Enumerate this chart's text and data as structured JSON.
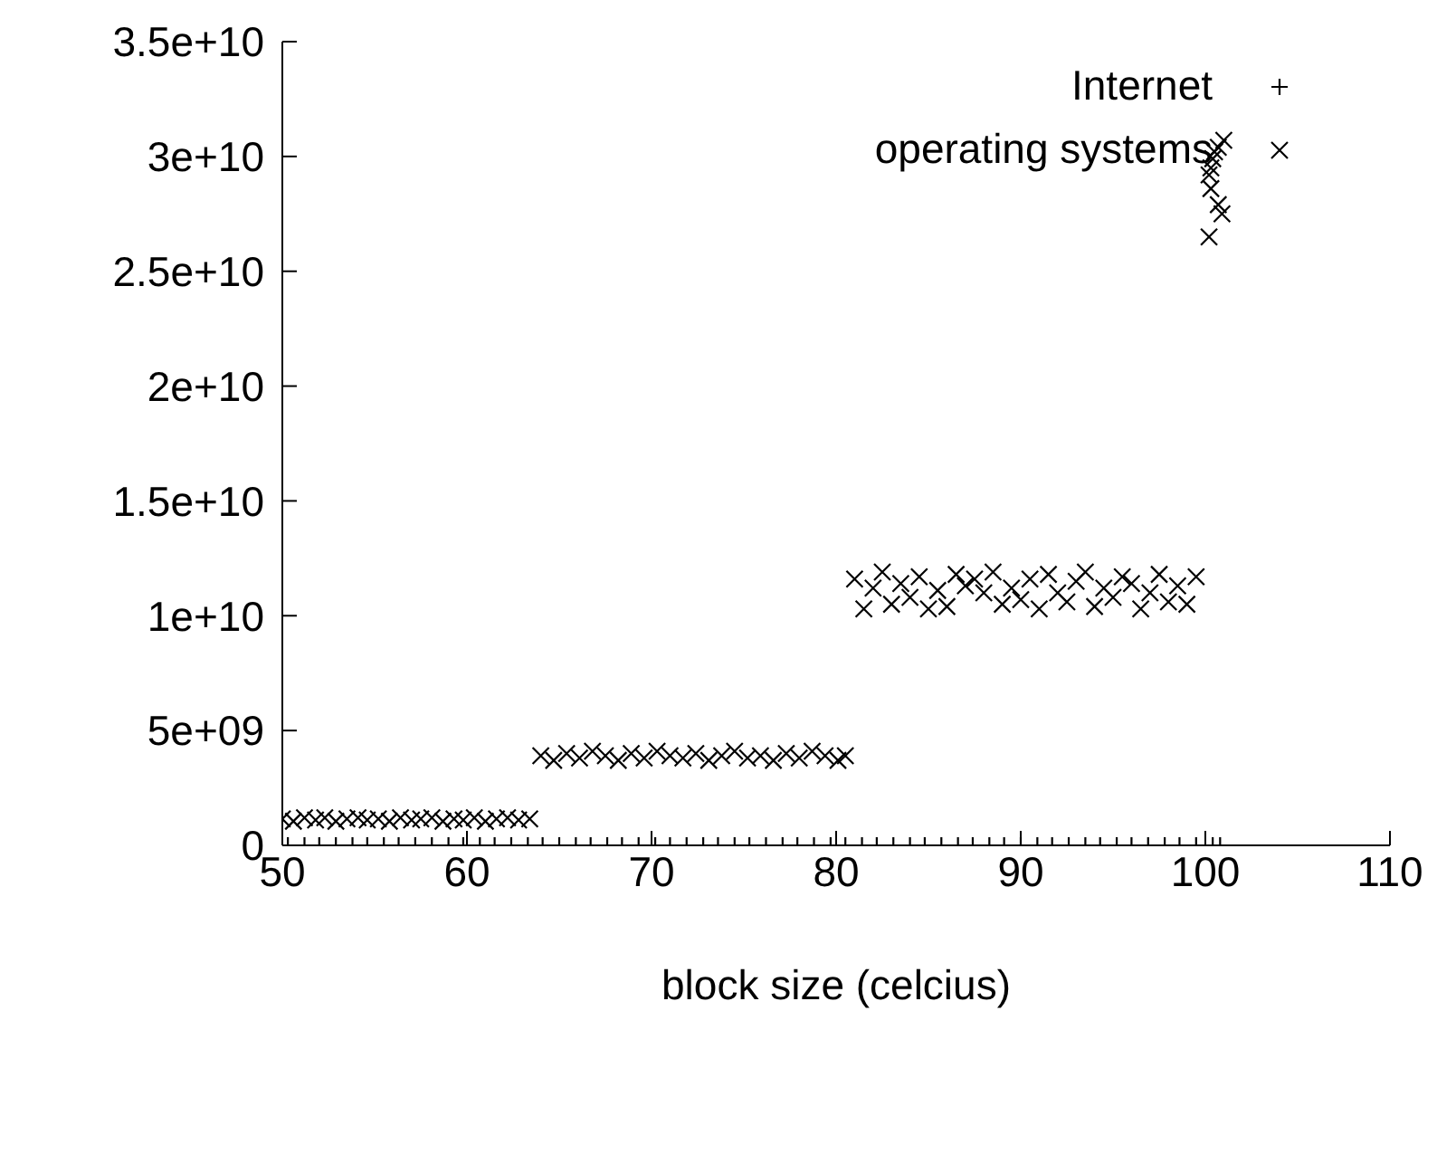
{
  "chart_data": {
    "type": "scatter",
    "xlabel": "block size (celcius)",
    "xlim": [
      50,
      110
    ],
    "xticks": [
      50,
      60,
      70,
      80,
      90,
      100,
      110
    ],
    "ylim": [
      0,
      35000000000
    ],
    "yticks": [
      0,
      {
        "value": 5000000000,
        "label": "5e+09"
      },
      {
        "value": 10000000000,
        "label": "1e+10"
      },
      {
        "value": 15000000000,
        "label": "1.5e+10"
      },
      {
        "value": 20000000000,
        "label": "2e+10"
      },
      {
        "value": 25000000000,
        "label": "2.5e+10"
      },
      {
        "value": 30000000000,
        "label": "3e+10"
      },
      {
        "value": 35000000000,
        "label": "3.5e+10"
      }
    ],
    "grid": false,
    "legend": "top right",
    "series": [
      {
        "name": "Internet",
        "color": "#000000",
        "marker": "plus",
        "x": [
          50.3,
          51.2,
          52.0,
          52.9,
          53.8,
          54.6,
          55.5,
          56.3,
          57.2,
          58.1,
          59.0,
          59.8,
          60.7,
          61.5,
          62.4,
          63.3,
          64.1,
          65.0,
          65.9,
          66.7,
          67.6,
          68.4,
          69.3,
          70.2,
          71.0,
          71.9,
          72.8,
          73.6,
          74.5,
          75.3,
          76.2,
          77.1,
          77.9,
          78.8,
          79.7,
          80.5,
          81.4,
          82.2,
          83.1,
          84.0,
          84.8,
          85.7,
          86.6,
          87.4,
          88.3,
          89.1,
          90.0,
          90.9,
          91.7,
          92.6,
          93.5,
          94.3,
          95.2,
          96.0,
          96.9,
          97.8,
          98.6,
          99.5,
          100.4,
          100.8
        ],
        "values": [
          0,
          0,
          0,
          0,
          0,
          0,
          0,
          0,
          0,
          0,
          0,
          0,
          0,
          0,
          0,
          0,
          0,
          0,
          0,
          0,
          0,
          0,
          0,
          0,
          0,
          0,
          0,
          0,
          0,
          0,
          0,
          0,
          0,
          0,
          0,
          0,
          0,
          0,
          0,
          0,
          0,
          0,
          0,
          0,
          0,
          0,
          0,
          0,
          0,
          0,
          0,
          0,
          0,
          0,
          0,
          0,
          0,
          0,
          0,
          0
        ]
      },
      {
        "name": "operating systems",
        "color": "#000000",
        "marker": "cross",
        "x": [
          50.0,
          50.6,
          51.2,
          51.8,
          52.3,
          52.9,
          53.5,
          54.1,
          54.6,
          55.2,
          55.8,
          56.4,
          57.0,
          57.5,
          58.1,
          58.7,
          59.3,
          59.8,
          60.4,
          61.0,
          61.6,
          62.2,
          62.8,
          63.4,
          64.0,
          64.7,
          65.4,
          66.1,
          66.8,
          67.5,
          68.2,
          68.9,
          69.6,
          70.3,
          71.0,
          71.7,
          72.4,
          73.1,
          73.8,
          74.5,
          75.2,
          75.9,
          76.6,
          77.3,
          78.0,
          78.7,
          79.4,
          80.1,
          80.5,
          81.0,
          81.5,
          82.0,
          82.5,
          83.0,
          83.5,
          84.0,
          84.5,
          85.0,
          85.5,
          86.0,
          86.5,
          87.0,
          87.5,
          88.0,
          88.5,
          89.0,
          89.5,
          90.0,
          90.5,
          91.0,
          91.5,
          92.0,
          92.5,
          93.0,
          93.5,
          94.0,
          94.5,
          95.0,
          95.5,
          96.0,
          96.5,
          97.0,
          97.5,
          98.0,
          98.5,
          99.0,
          99.5,
          101.0,
          100.7,
          100.5,
          100.4,
          100.3,
          100.2,
          100.3,
          100.7,
          100.9,
          100.2
        ],
        "values": [
          1150000000,
          1050000000,
          1200000000,
          1100000000,
          1200000000,
          1050000000,
          1150000000,
          1200000000,
          1100000000,
          1150000000,
          1050000000,
          1200000000,
          1100000000,
          1150000000,
          1200000000,
          1050000000,
          1150000000,
          1100000000,
          1200000000,
          1050000000,
          1150000000,
          1200000000,
          1100000000,
          1150000000,
          3900000000,
          3700000000,
          4000000000,
          3800000000,
          4100000000,
          3900000000,
          3700000000,
          4000000000,
          3800000000,
          4100000000,
          3900000000,
          3800000000,
          4000000000,
          3700000000,
          3900000000,
          4100000000,
          3800000000,
          3900000000,
          3700000000,
          4000000000,
          3800000000,
          4100000000,
          3900000000,
          3700000000,
          3900000000,
          11600000000,
          10300000000,
          11200000000,
          11900000000,
          10500000000,
          11400000000,
          10800000000,
          11700000000,
          10300000000,
          11100000000,
          10400000000,
          11800000000,
          11300000000,
          11600000000,
          11000000000,
          11900000000,
          10500000000,
          11200000000,
          10700000000,
          11600000000,
          10300000000,
          11800000000,
          11000000000,
          10600000000,
          11500000000,
          11900000000,
          10400000000,
          11200000000,
          10800000000,
          11700000000,
          11400000000,
          10300000000,
          11000000000,
          11800000000,
          10600000000,
          11300000000,
          10500000000,
          11700000000,
          30700000000,
          30400000000,
          30200000000,
          29900000000,
          29500000000,
          29200000000,
          28600000000,
          27900000000,
          27500000000,
          26500000000
        ]
      }
    ]
  }
}
